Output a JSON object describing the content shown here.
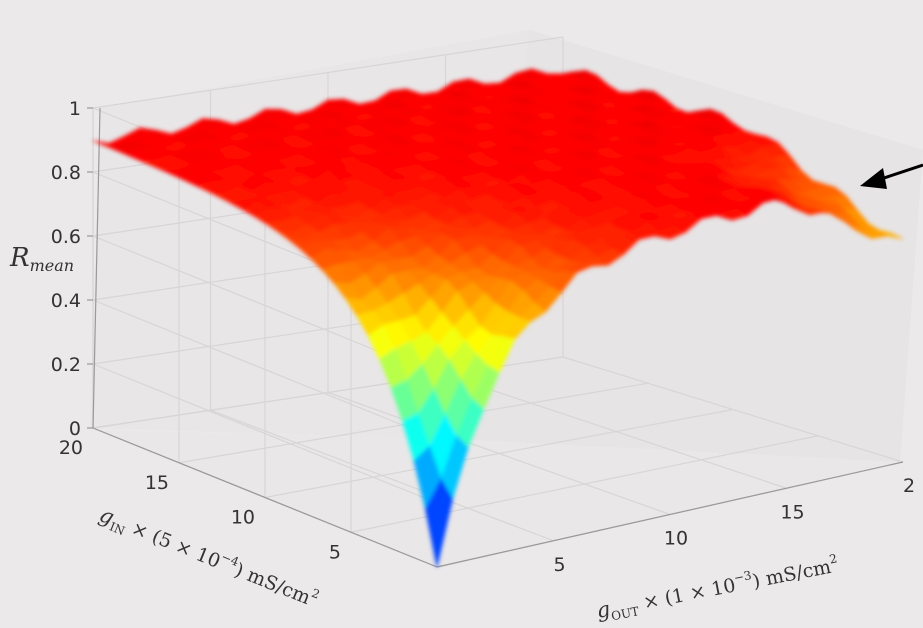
{
  "chart_data": {
    "type": "surface",
    "zlabel": {
      "main": "R",
      "sub": "mean"
    },
    "xlabel": {
      "var": "g",
      "sub": "OUT",
      "mid": " × (1 × 10",
      "exp": "−3",
      "post": ") mS/cm",
      "exp2": "2"
    },
    "ylabel": {
      "var": "g",
      "sub": "IN",
      "mid": " × (5 × 10",
      "exp": "−4",
      "post": ") mS/cm",
      "exp2": "2"
    },
    "z_ticks": [
      "0",
      "0.2",
      "0.4",
      "0.6",
      "0.8",
      "1"
    ],
    "x_ticks": [
      "5",
      "10",
      "15",
      "2"
    ],
    "y_ticks": [
      "5",
      "10",
      "15",
      "20"
    ],
    "xlim": [
      0,
      20
    ],
    "ylim": [
      0,
      20
    ],
    "zlim": [
      0,
      1
    ],
    "grid": true,
    "colormap": "jet",
    "minimum": {
      "value": 0.0,
      "location": "near the origin of the g_OUT–g_IN plane"
    },
    "plateau_value": 0.9,
    "annotation": "black arrow pointing at the surface edge near R ≈ 0.8"
  }
}
